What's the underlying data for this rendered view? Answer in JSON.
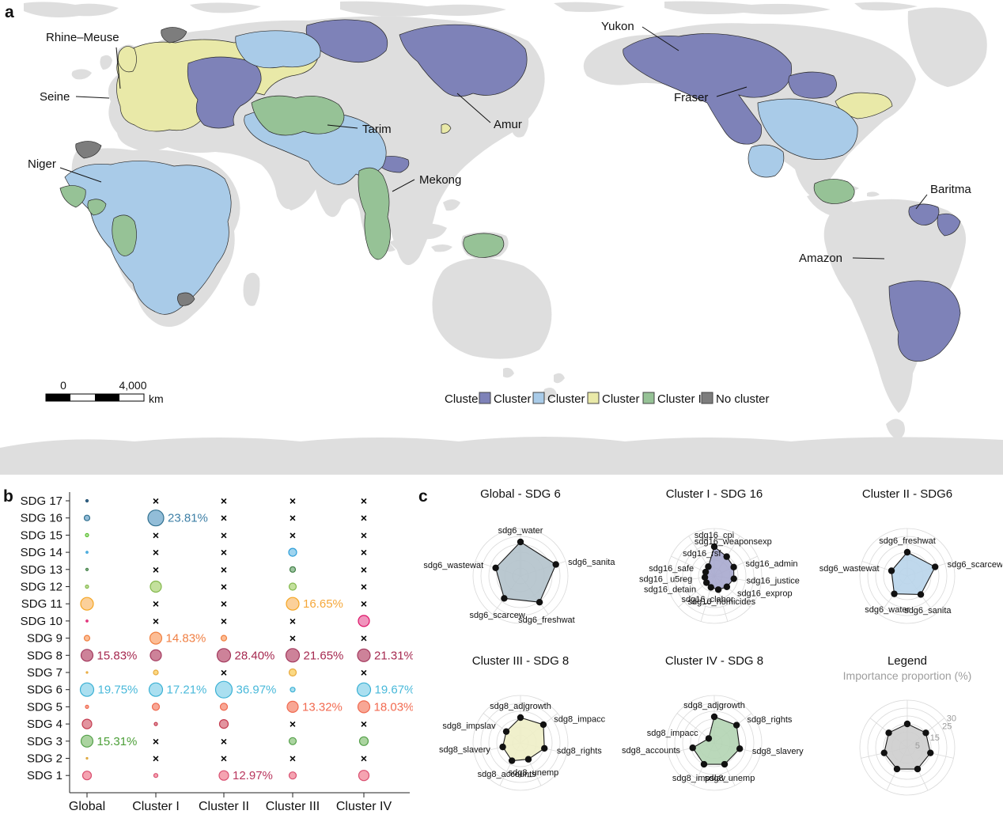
{
  "figure": {
    "panel_a": "a",
    "panel_b": "b",
    "panel_c": "c"
  },
  "map": {
    "legend_title": "Cluster",
    "legend_items": [
      {
        "label": "Cluster I",
        "color": "#7e82b8"
      },
      {
        "label": "Cluster II",
        "color": "#a9cbe8"
      },
      {
        "label": "Cluster III",
        "color": "#e9e9a8"
      },
      {
        "label": "Cluster IV",
        "color": "#96c296"
      },
      {
        "label": "No cluster",
        "color": "#7d7d7d"
      }
    ],
    "scale_bar": {
      "start": "0",
      "end": "4,000",
      "unit": "km"
    },
    "basin_labels": {
      "rhine_meuse": "Rhine–Meuse",
      "seine": "Seine",
      "niger": "Niger",
      "tarim": "Tarim",
      "mekong": "Mekong",
      "amur": "Amur",
      "yukon": "Yukon",
      "fraser": "Fraser",
      "baritma": "Baritma",
      "amazon": "Amazon"
    }
  },
  "chart_data": [
    {
      "id": "sdg-importance-bubble-matrix",
      "type": "scatter",
      "x_categories": [
        "Global",
        "Cluster I",
        "Cluster II",
        "Cluster III",
        "Cluster IV"
      ],
      "y_categories": [
        "SDG 17",
        "SDG 16",
        "SDG 15",
        "SDG 14",
        "SDG 13",
        "SDG 12",
        "SDG 11",
        "SDG 10",
        "SDG 9",
        "SDG 8",
        "SDG 7",
        "SDG 6",
        "SDG 5",
        "SDG 4",
        "SDG 3",
        "SDG 2",
        "SDG 1"
      ],
      "missing_marker": "×",
      "rows": [
        {
          "sdg": "SDG 17",
          "fill": "#4a79a5",
          "stroke": "#1f4e6e",
          "text": "#1f4e6e",
          "cells": [
            {
              "s": 1.5
            },
            "x",
            "x",
            "x",
            "x"
          ]
        },
        {
          "sdg": "SDG 16",
          "fill": "#92bdd8",
          "stroke": "#31708f",
          "text": "#3d7fa6",
          "cells": [
            {
              "s": 3.5
            },
            {
              "s": 10,
              "p": "23.81%"
            },
            "x",
            "x",
            "x"
          ]
        },
        {
          "sdg": "SDG 15",
          "fill": "#bce3ac",
          "stroke": "#56c02b",
          "text": "#56c02b",
          "cells": [
            {
              "s": 2
            },
            "x",
            "x",
            "x",
            "x"
          ]
        },
        {
          "sdg": "SDG 14",
          "fill": "#9fd4ef",
          "stroke": "#2f9fd8",
          "text": "#2f9fd8",
          "cells": [
            {
              "s": 1.2
            },
            "x",
            "x",
            {
              "s": 5
            },
            "x"
          ]
        },
        {
          "sdg": "SDG 13",
          "fill": "#9dc4a0",
          "stroke": "#3f7e44",
          "text": "#3f7e44",
          "cells": [
            {
              "s": 1.5
            },
            "x",
            "x",
            {
              "s": 3.5
            },
            "x"
          ]
        },
        {
          "sdg": "SDG 12",
          "fill": "#c3e09c",
          "stroke": "#84b84e",
          "text": "#84b84e",
          "cells": [
            {
              "s": 2
            },
            {
              "s": 7
            },
            "x",
            {
              "s": 4.5
            },
            "x"
          ]
        },
        {
          "sdg": "SDG 11",
          "fill": "#fbd09a",
          "stroke": "#f5a623",
          "text": "#f5a73a",
          "cells": [
            {
              "s": 8
            },
            "x",
            "x",
            {
              "s": 8,
              "p": "16.65%"
            },
            "x"
          ]
        },
        {
          "sdg": "SDG 10",
          "fill": "#f095bd",
          "stroke": "#dd1367",
          "text": "#dd1367",
          "cells": [
            {
              "s": 1.2
            },
            "x",
            "x",
            "x",
            {
              "s": 7
            }
          ]
        },
        {
          "sdg": "SDG 9",
          "fill": "#fcbd95",
          "stroke": "#f07f3f",
          "text": "#f08045",
          "cells": [
            {
              "s": 3.5
            },
            {
              "s": 7.5,
              "p": "14.83%"
            },
            {
              "s": 3.5
            },
            "x",
            "x"
          ]
        },
        {
          "sdg": "SDG 8",
          "fill": "#cd8299",
          "stroke": "#a33a5e",
          "text": "#a62950",
          "cells": [
            {
              "s": 7.5,
              "p": "15.83%"
            },
            {
              "s": 7
            },
            {
              "s": 8.5,
              "p": "28.40%"
            },
            {
              "s": 8.5,
              "p": "21.65%"
            },
            {
              "s": 8,
              "p": "21.31%"
            }
          ]
        },
        {
          "sdg": "SDG 7",
          "fill": "#fbd984",
          "stroke": "#e8a93c",
          "text": "#e8a93c",
          "cells": [
            {
              "s": 1
            },
            {
              "s": 3
            },
            "x",
            {
              "s": 4.5
            },
            "x"
          ]
        },
        {
          "sdg": "SDG 6",
          "fill": "#aadff0",
          "stroke": "#3bb1d4",
          "text": "#49b9da",
          "cells": [
            {
              "s": 8.5,
              "p": "19.75%"
            },
            {
              "s": 8.5,
              "p": "17.21%"
            },
            {
              "s": 10.5,
              "p": "36.97%"
            },
            {
              "s": 3
            },
            {
              "s": 8.5,
              "p": "19.67%"
            }
          ]
        },
        {
          "sdg": "SDG 5",
          "fill": "#f8a795",
          "stroke": "#ef6a50",
          "text": "#f26a50",
          "cells": [
            {
              "s": 2
            },
            {
              "s": 4.5
            },
            {
              "s": 4.5
            },
            {
              "s": 7,
              "p": "13.32%"
            },
            {
              "s": 7.5,
              "p": "18.03%"
            }
          ]
        },
        {
          "sdg": "SDG 4",
          "fill": "#e2949f",
          "stroke": "#c43c50",
          "text": "#c43c50",
          "cells": [
            {
              "s": 6
            },
            {
              "s": 2
            },
            {
              "s": 5.5
            },
            "x",
            "x"
          ]
        },
        {
          "sdg": "SDG 3",
          "fill": "#abd4a0",
          "stroke": "#55a04a",
          "text": "#4c9f38",
          "cells": [
            {
              "s": 7.5,
              "p": "15.31%"
            },
            "x",
            "x",
            {
              "s": 4.5
            },
            {
              "s": 5.5
            }
          ]
        },
        {
          "sdg": "SDG 2",
          "fill": "#efce91",
          "stroke": "#dda63a",
          "text": "#dda63a",
          "cells": [
            {
              "s": 1
            },
            "x",
            "x",
            "x",
            "x"
          ]
        },
        {
          "sdg": "SDG 1",
          "fill": "#f5a3b1",
          "stroke": "#d94f70",
          "text": "#b9375e",
          "cells": [
            {
              "s": 5.5
            },
            {
              "s": 2.5
            },
            {
              "s": 6,
              "p": "12.97%"
            },
            {
              "s": 4.5
            },
            {
              "s": 6.5
            }
          ]
        }
      ]
    },
    {
      "id": "radar-global-sdg6",
      "type": "radar",
      "title": "Global - SDG 6",
      "fill": "#b3c2cb",
      "max": 30,
      "rings": [
        5,
        10,
        15,
        20,
        25,
        30
      ],
      "axes": [
        "sdg6_water",
        "sdg6_sanita",
        "sdg6_freshwat",
        "sdg6_scarcew",
        "sdg6_wastewat"
      ],
      "values": [
        21.5,
        23.5,
        20.5,
        17.5,
        16.5
      ]
    },
    {
      "id": "radar-cluster1-sdg16",
      "type": "radar",
      "title": "Cluster I - SDG 16",
      "fill": "#a7a8ce",
      "max": 30,
      "rings": [
        5,
        10,
        15,
        20,
        25,
        30
      ],
      "axes": [
        "sdg16_cpi",
        "sdg16_weaponsexp",
        "sdg16_admin",
        "sdg16_justice",
        "sdg16_exprop",
        "sdg16_homicides",
        "sdg16_clabor",
        "sdg16_detain",
        "sdg16_ u5reg",
        "sdg16_safe",
        "sdg16_rsf"
      ],
      "values": [
        18.5,
        14.5,
        13.5,
        12.5,
        10.5,
        9,
        7.5,
        6.5,
        6,
        6,
        7
      ]
    },
    {
      "id": "radar-cluster2-sdg6",
      "type": "radar",
      "title": "Cluster II - SDG6",
      "fill": "#b8d4ea",
      "max": 30,
      "rings": [
        5,
        10,
        15,
        20,
        25,
        30
      ],
      "axes": [
        "sdg6_freshwat",
        "sdg6_scarcew",
        "sdg6_sanita",
        "sdg6_water",
        "sdg6_wastewat"
      ],
      "values": [
        15,
        18.5,
        14.5,
        14,
        10.5
      ]
    },
    {
      "id": "radar-cluster3-sdg8",
      "type": "radar",
      "title": "Cluster III - SDG 8",
      "fill": "#eeeec6",
      "max": 30,
      "rings": [
        5,
        10,
        15,
        20,
        25,
        30
      ],
      "axes": [
        "sdg8_adjgrowth",
        "sdg8_impacc",
        "sdg8_rights",
        "sdg8_unemp",
        "sdg8_accounts",
        "sdg8_slavery",
        "sdg8_impslav"
      ],
      "values": [
        16,
        18.5,
        15.5,
        11.5,
        12.5,
        11.5,
        11.5
      ]
    },
    {
      "id": "radar-cluster4-sdg8",
      "type": "radar",
      "title": "Cluster IV - SDG 8",
      "fill": "#b2d4b2",
      "max": 30,
      "rings": [
        5,
        10,
        15,
        20,
        25,
        30
      ],
      "axes": [
        "sdg8_adjgrowth",
        "sdg8_rights",
        "sdg8_slavery",
        "sdg8_unemp",
        "sdg8_impslav",
        "sdg8_accounts",
        "sdg8_impacc"
      ],
      "values": [
        16.5,
        18,
        16.5,
        15,
        15,
        14,
        4.5
      ]
    },
    {
      "id": "radar-legend",
      "type": "radar",
      "title": "Legend",
      "subtitle": "Importance proportion (%)",
      "fill": "#cdcdcd",
      "max": 30,
      "rings": [
        5,
        10,
        15,
        20,
        25,
        30
      ],
      "axes": [
        "",
        "",
        "",
        "",
        "",
        "",
        ""
      ],
      "values": [
        15,
        15,
        15,
        15,
        15,
        15,
        15
      ],
      "ring_labels": [
        "5",
        "15",
        "25",
        "30"
      ],
      "ring_label_values": [
        5,
        15,
        25,
        30
      ]
    }
  ]
}
